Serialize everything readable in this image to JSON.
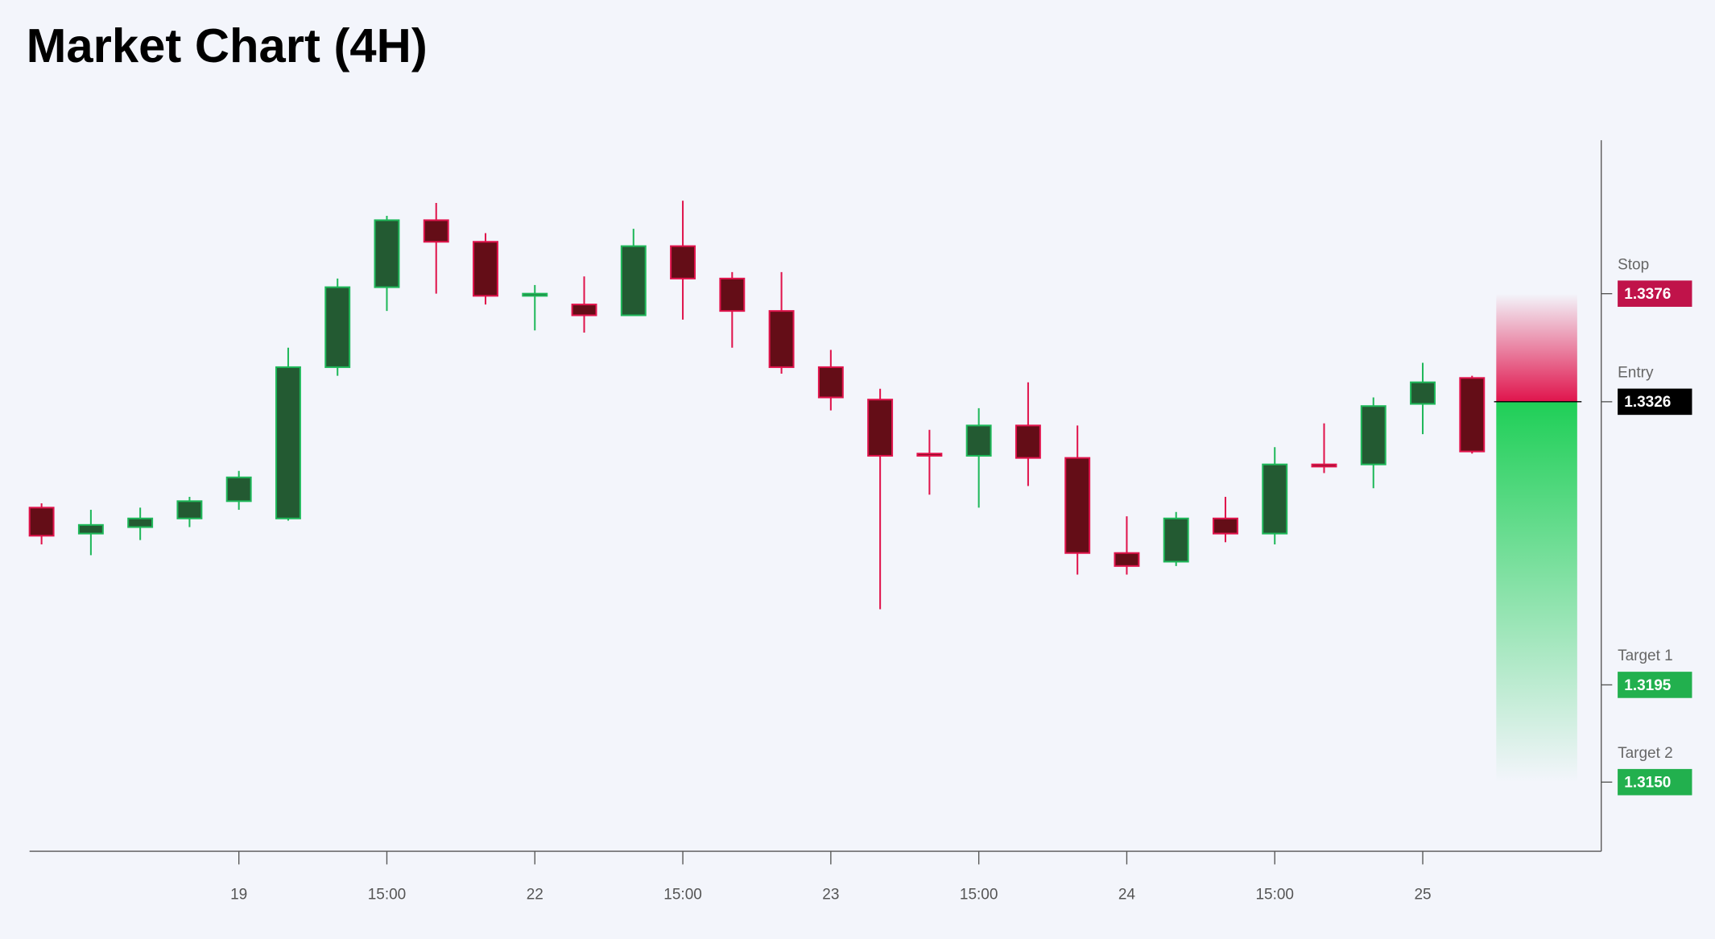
{
  "chart_data": {
    "type": "candlestick",
    "title": "Market Chart (4H)",
    "categories": [
      null,
      null,
      null,
      null,
      "19",
      null,
      null,
      "15:00",
      null,
      null,
      "22",
      null,
      null,
      "15:00",
      null,
      null,
      "23",
      null,
      null,
      "15:00",
      null,
      null,
      "24",
      null,
      null,
      "15:00",
      null,
      null,
      "25",
      null
    ],
    "open": [
      1.3277,
      1.3265,
      1.3268,
      1.3272,
      1.328,
      1.3272,
      1.3342,
      1.3379,
      1.341,
      1.34,
      1.3375,
      1.3371,
      1.3366,
      1.3398,
      1.3383,
      1.3368,
      1.3342,
      1.3327,
      1.3302,
      1.3301,
      1.3315,
      1.33,
      1.3256,
      1.3252,
      1.3272,
      1.3265,
      1.3297,
      1.3297,
      1.3325,
      1.3337
    ],
    "high": [
      1.3279,
      1.3276,
      1.3277,
      1.3282,
      1.3294,
      1.3351,
      1.3383,
      1.3412,
      1.3418,
      1.3404,
      1.338,
      1.3384,
      1.3406,
      1.3419,
      1.3386,
      1.3386,
      1.335,
      1.3332,
      1.3313,
      1.3323,
      1.3335,
      1.3315,
      1.3273,
      1.3275,
      1.3282,
      1.3305,
      1.3316,
      1.3328,
      1.3344,
      1.3338
    ],
    "low": [
      1.326,
      1.3255,
      1.3262,
      1.3268,
      1.3276,
      1.3271,
      1.3338,
      1.3368,
      1.3376,
      1.3371,
      1.3359,
      1.3358,
      1.3366,
      1.3364,
      1.3351,
      1.3339,
      1.3322,
      1.323,
      1.3283,
      1.3277,
      1.3287,
      1.3246,
      1.3246,
      1.325,
      1.3261,
      1.326,
      1.3293,
      1.3286,
      1.3311,
      1.3302
    ],
    "close": [
      1.3264,
      1.3269,
      1.3272,
      1.328,
      1.3291,
      1.3342,
      1.3379,
      1.341,
      1.34,
      1.3375,
      1.3376,
      1.3366,
      1.3398,
      1.3383,
      1.3368,
      1.3342,
      1.3328,
      1.3301,
      1.3301,
      1.3315,
      1.33,
      1.3256,
      1.325,
      1.3272,
      1.3265,
      1.3297,
      1.3296,
      1.3324,
      1.3335,
      1.3303
    ],
    "up_color": "#1fb85a",
    "up_fill": "#235a32",
    "down_color": "#e0144c",
    "down_fill": "#640d17",
    "ylim": [
      1.3118,
      1.3447
    ],
    "levels": [
      {
        "name": "Stop",
        "value": 1.3376,
        "color": "#c0134a"
      },
      {
        "name": "Entry",
        "value": 1.3326,
        "color": "#000000"
      },
      {
        "name": "Target 1",
        "value": 1.3195,
        "color": "#22b04e"
      },
      {
        "name": "Target 2",
        "value": 1.315,
        "label": "1.3150",
        "color": "#22b04e"
      }
    ]
  }
}
